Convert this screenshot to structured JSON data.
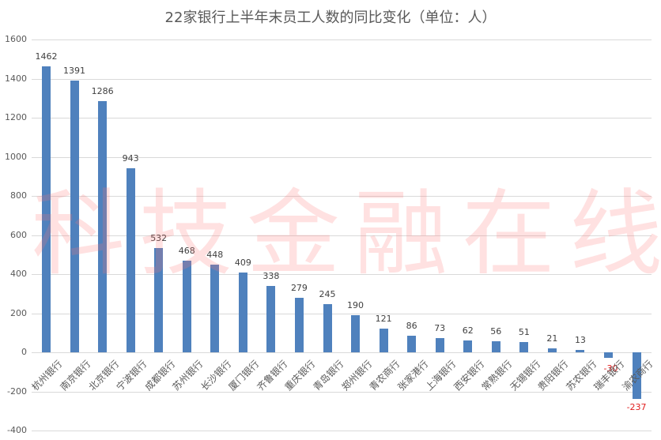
{
  "chart_data": {
    "type": "bar",
    "title": "22家银行上半年末员工人数的同比变化（单位：人）",
    "xlabel": "",
    "ylabel": "",
    "ylim": [
      -400,
      1600
    ],
    "yticks": [
      1600,
      1400,
      1200,
      1000,
      800,
      600,
      400,
      200,
      0,
      -200,
      -400
    ],
    "grid": true,
    "legend": null,
    "bar_color": "#4f81bd",
    "negative_label_color": "#e02020",
    "categories": [
      "杭州银行",
      "南京银行",
      "北京银行",
      "宁波银行",
      "成都银行",
      "苏州银行",
      "长沙银行",
      "厦门银行",
      "齐鲁银行",
      "重庆银行",
      "青岛银行",
      "郑州银行",
      "青农商行",
      "张家港行",
      "上海银行",
      "西安银行",
      "常熟银行",
      "无锡银行",
      "贵阳银行",
      "苏农银行",
      "瑞丰银行",
      "渝农商行"
    ],
    "values": [
      1462,
      1391,
      1286,
      943,
      532,
      468,
      448,
      409,
      338,
      279,
      245,
      190,
      121,
      86,
      73,
      62,
      56,
      51,
      21,
      13,
      -30,
      -237
    ]
  },
  "watermark": "科技金融在线"
}
